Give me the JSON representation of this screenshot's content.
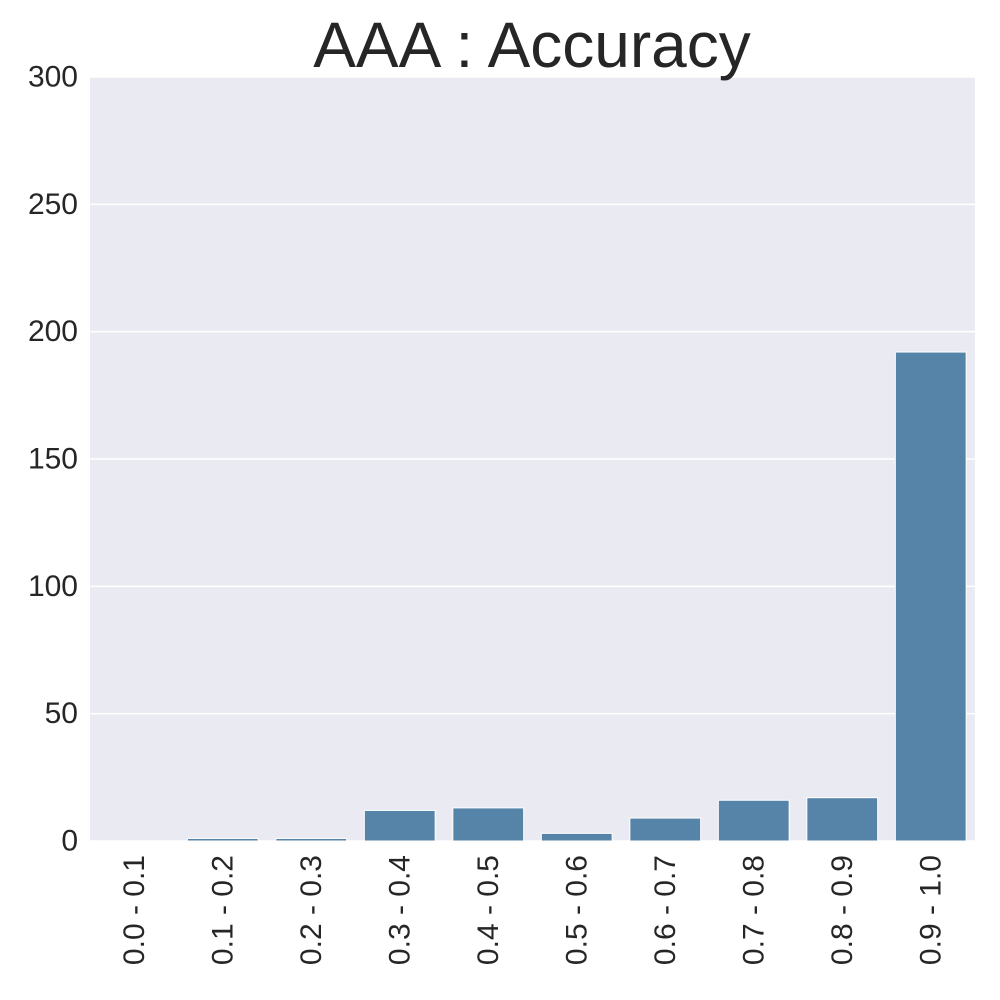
{
  "chart_data": {
    "type": "bar",
    "title": "AAA : Accuracy",
    "xlabel": "",
    "ylabel": "",
    "categories": [
      "0.0 - 0.1",
      "0.1 - 0.2",
      "0.2 - 0.3",
      "0.3 - 0.4",
      "0.4 - 0.5",
      "0.5 - 0.6",
      "0.6 - 0.7",
      "0.7 - 0.8",
      "0.8 - 0.9",
      "0.9 - 1.0"
    ],
    "values": [
      0,
      1,
      1,
      12,
      13,
      3,
      9,
      16,
      17,
      192
    ],
    "ylim": [
      0,
      300
    ],
    "yticks": [
      0,
      50,
      100,
      150,
      200,
      250,
      300
    ],
    "ytick_labels": [
      "0",
      "50",
      "100",
      "150",
      "200",
      "250",
      "300"
    ],
    "grid": true,
    "colors": {
      "bar": "#5683a8",
      "plot_background": "#eaeaf2",
      "grid": "#ffffff",
      "text": "#262626"
    }
  }
}
